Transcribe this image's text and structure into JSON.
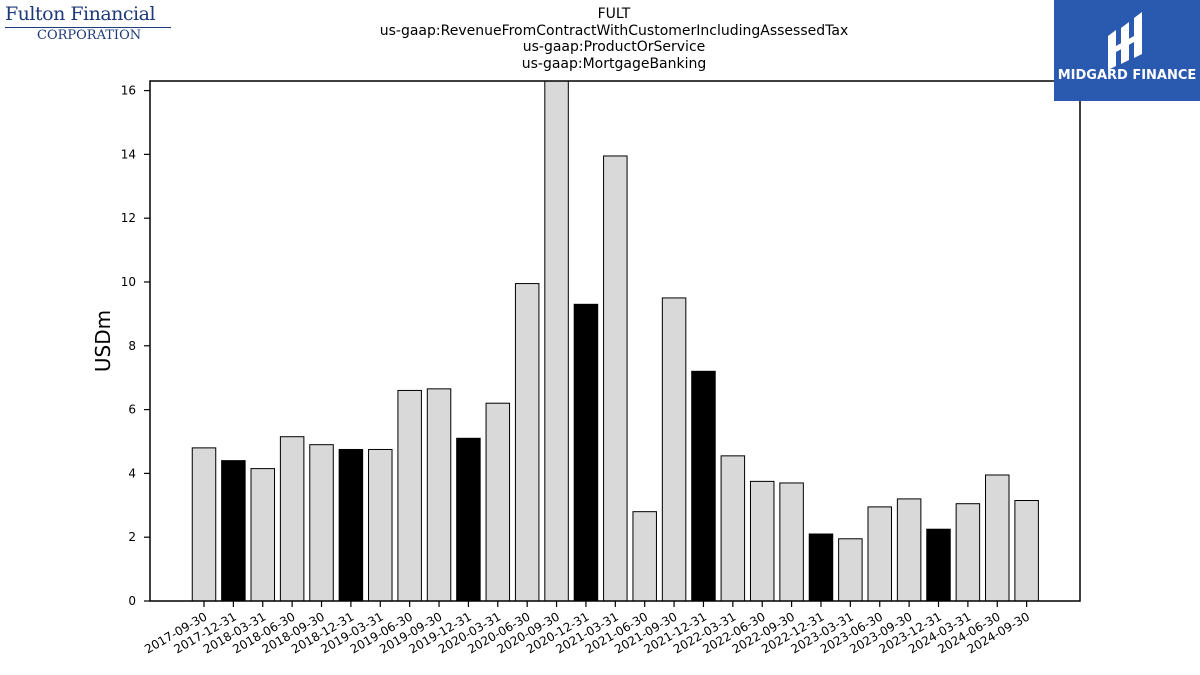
{
  "branding": {
    "left_logo_line1": "Fulton Financial",
    "left_logo_line2": "CORPORATION",
    "right_logo_text": "MIDGARD FINANCE",
    "right_logo_color": "#2a5ab0",
    "left_logo_color": "#1f3a7a"
  },
  "title_lines": [
    "FULT",
    "us-gaap:RevenueFromContractWithCustomerIncludingAssessedTax",
    "us-gaap:ProductOrService",
    "us-gaap:MortgageBanking"
  ],
  "chart_data": {
    "type": "bar",
    "title": "FULT us-gaap:RevenueFromContractWithCustomerIncludingAssessedTax us-gaap:ProductOrService us-gaap:MortgageBanking",
    "xlabel": "",
    "ylabel": "USDm",
    "ylim": [
      0,
      16.3
    ],
    "yticks": [
      0,
      2,
      4,
      6,
      8,
      10,
      12,
      14,
      16
    ],
    "grid": false,
    "categories": [
      "2017-09-30",
      "2017-12-31",
      "2018-03-31",
      "2018-06-30",
      "2018-09-30",
      "2018-12-31",
      "2019-03-31",
      "2019-06-30",
      "2019-09-30",
      "2019-12-31",
      "2020-03-31",
      "2020-06-30",
      "2020-09-30",
      "2020-12-31",
      "2021-03-31",
      "2021-06-30",
      "2021-09-30",
      "2021-12-31",
      "2022-03-31",
      "2022-06-30",
      "2022-09-30",
      "2022-12-31",
      "2023-03-31",
      "2023-06-30",
      "2023-09-30",
      "2023-12-31",
      "2024-03-31",
      "2024-06-30",
      "2024-09-30"
    ],
    "values": [
      4.8,
      4.4,
      4.15,
      5.15,
      4.9,
      4.75,
      4.75,
      6.6,
      6.65,
      5.1,
      6.2,
      9.95,
      16.5,
      9.3,
      13.95,
      2.8,
      9.5,
      7.2,
      4.55,
      3.75,
      3.7,
      2.1,
      1.95,
      2.95,
      3.2,
      2.25,
      3.05,
      3.95,
      3.15
    ],
    "highlight_quarter_end": "12-31",
    "colors": {
      "default": "#d9d9d9",
      "highlight": "#000000",
      "edge": "#000000"
    }
  }
}
